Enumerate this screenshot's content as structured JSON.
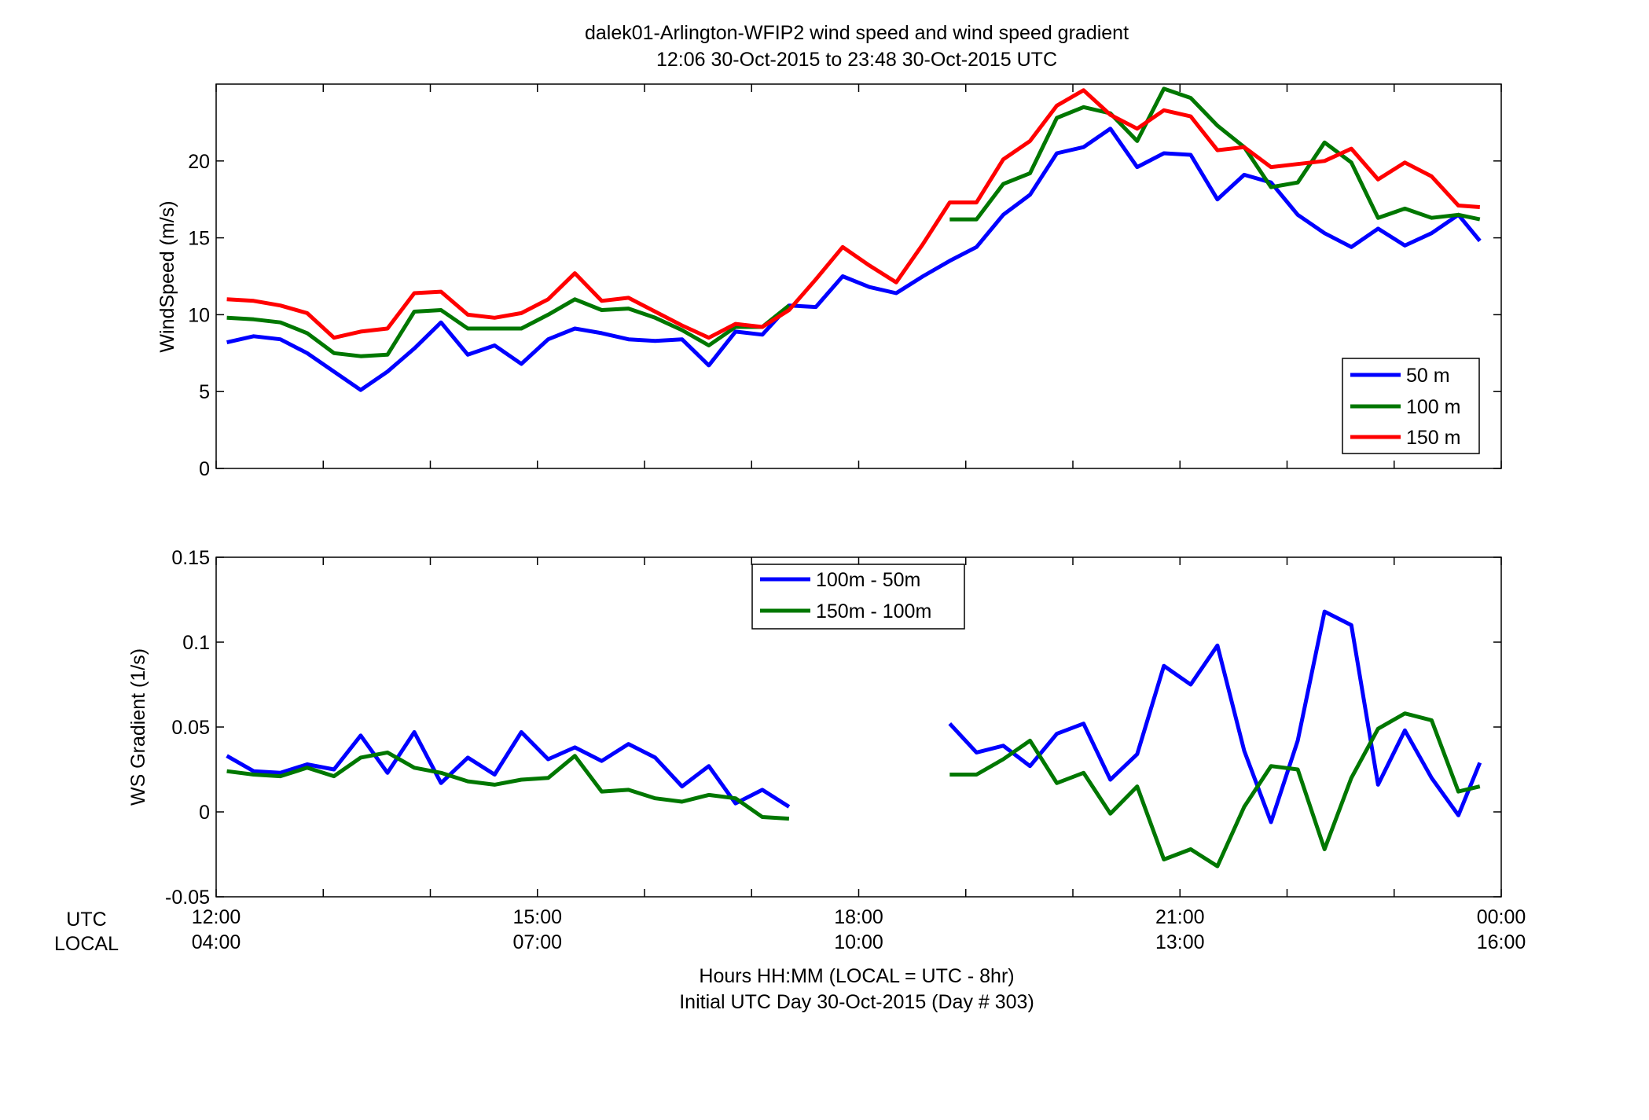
{
  "figure": {
    "title_line1": "dalek01-Arlington-WFIP2  wind speed and wind speed gradient",
    "title_line2": "12:06 30-Oct-2015 to 23:48 30-Oct-2015  UTC",
    "xlabel_line1": "Hours HH:MM  (LOCAL = UTC - 8hr)",
    "xlabel_line2": "Initial UTC Day 30-Oct-2015 (Day # 303)",
    "row_label_utc": "UTC",
    "row_label_local": "LOCAL",
    "xticks_utc": [
      "12:00",
      "15:00",
      "18:00",
      "21:00",
      "00:00"
    ],
    "xticks_local": [
      "04:00",
      "07:00",
      "10:00",
      "13:00",
      "16:00"
    ]
  },
  "chart_data": [
    {
      "type": "line",
      "ylabel": "WindSpeed (m/s)",
      "ylim": [
        0,
        25
      ],
      "yticks": [
        0,
        5,
        10,
        15,
        20
      ],
      "xlim": [
        12,
        24
      ],
      "grid": false,
      "legend_position": "bottom-right",
      "series": [
        {
          "name": "50 m",
          "color": "#0000ff",
          "x": [
            12.1,
            12.35,
            12.6,
            12.85,
            13.1,
            13.35,
            13.6,
            13.85,
            14.1,
            14.35,
            14.6,
            14.85,
            15.1,
            15.35,
            15.6,
            15.85,
            16.1,
            16.35,
            16.6,
            16.85,
            17.1,
            17.35,
            17.6,
            17.85,
            18.1,
            18.35,
            18.6,
            18.85,
            19.1,
            19.35,
            19.6,
            19.85,
            20.1,
            20.35,
            20.6,
            20.85,
            21.1,
            21.35,
            21.6,
            21.85,
            22.1,
            22.35,
            22.6,
            22.85,
            23.1,
            23.35,
            23.6,
            23.8
          ],
          "values": [
            8.2,
            8.6,
            8.4,
            7.5,
            6.3,
            5.1,
            6.3,
            7.8,
            9.5,
            7.4,
            8.0,
            6.8,
            8.4,
            9.1,
            8.8,
            8.4,
            8.3,
            8.4,
            6.7,
            8.9,
            8.7,
            10.6,
            10.5,
            12.5,
            11.8,
            11.4,
            12.5,
            13.5,
            14.4,
            16.5,
            17.8,
            20.5,
            20.9,
            22.1,
            19.6,
            20.5,
            20.4,
            17.5,
            19.1,
            18.6,
            16.5,
            15.3,
            14.4,
            15.6,
            14.5,
            15.3,
            16.5,
            14.8
          ]
        },
        {
          "name": "100 m",
          "color": "#007700",
          "x": [
            12.1,
            12.35,
            12.6,
            12.85,
            13.1,
            13.35,
            13.6,
            13.85,
            14.1,
            14.35,
            14.6,
            14.85,
            15.1,
            15.35,
            15.6,
            15.85,
            16.1,
            16.35,
            16.6,
            16.85,
            17.1,
            17.35,
            null,
            18.85,
            19.1,
            19.35,
            19.6,
            19.85,
            20.1,
            20.35,
            20.6,
            20.85,
            21.1,
            21.35,
            21.6,
            21.85,
            22.1,
            22.35,
            22.6,
            22.85,
            23.1,
            23.35,
            23.6,
            23.8
          ],
          "values": [
            9.8,
            9.7,
            9.5,
            8.8,
            7.5,
            7.3,
            7.4,
            10.2,
            10.3,
            9.1,
            9.1,
            9.1,
            10.0,
            11.0,
            10.3,
            10.4,
            9.8,
            9.0,
            8.0,
            9.2,
            9.2,
            10.6,
            null,
            16.2,
            16.2,
            18.5,
            19.2,
            22.8,
            23.5,
            23.1,
            21.3,
            24.7,
            24.1,
            22.3,
            20.9,
            18.3,
            18.6,
            21.2,
            19.9,
            16.3,
            16.9,
            16.3,
            16.5,
            16.2
          ]
        },
        {
          "name": "150 m",
          "color": "#ff0000",
          "x": [
            12.1,
            12.35,
            12.6,
            12.85,
            13.1,
            13.35,
            13.6,
            13.85,
            14.1,
            14.35,
            14.6,
            14.85,
            15.1,
            15.35,
            15.6,
            15.85,
            16.1,
            16.35,
            16.6,
            16.85,
            17.1,
            17.35,
            17.6,
            17.85,
            18.1,
            18.35,
            18.6,
            18.85,
            19.1,
            19.35,
            19.6,
            19.85,
            20.1,
            20.35,
            20.6,
            20.85,
            21.1,
            21.35,
            21.6,
            21.85,
            22.1,
            22.35,
            22.6,
            22.85,
            23.1,
            23.35,
            23.6,
            23.8
          ],
          "values": [
            11.0,
            10.9,
            10.6,
            10.1,
            8.5,
            8.9,
            9.1,
            11.4,
            11.5,
            10.0,
            9.8,
            10.1,
            11.0,
            12.7,
            10.9,
            11.1,
            10.2,
            9.3,
            8.5,
            9.4,
            9.2,
            10.3,
            12.3,
            14.4,
            13.2,
            12.1,
            14.6,
            17.3,
            17.3,
            20.1,
            21.3,
            23.6,
            24.6,
            23.0,
            22.1,
            23.3,
            22.9,
            20.7,
            20.9,
            19.6,
            19.8,
            20.0,
            20.8,
            18.8,
            19.9,
            19.0,
            17.1,
            17.0
          ]
        }
      ]
    },
    {
      "type": "line",
      "ylabel": "WS Gradient (1/s)",
      "ylim": [
        -0.05,
        0.15
      ],
      "yticks": [
        -0.05,
        0,
        0.05,
        0.1,
        0.15
      ],
      "ytick_labels": [
        "-0.05",
        "0",
        "0.05",
        "0.1",
        "0.15"
      ],
      "xlim": [
        12,
        24
      ],
      "grid": false,
      "legend_position": "top-center",
      "series": [
        {
          "name": "100m - 50m",
          "color": "#0000ff",
          "x": [
            12.1,
            12.35,
            12.6,
            12.85,
            13.1,
            13.35,
            13.6,
            13.85,
            14.1,
            14.35,
            14.6,
            14.85,
            15.1,
            15.35,
            15.6,
            15.85,
            16.1,
            16.35,
            16.6,
            16.85,
            17.1,
            17.35,
            null,
            18.85,
            19.1,
            19.35,
            19.6,
            19.85,
            20.1,
            20.35,
            20.6,
            20.85,
            21.1,
            21.35,
            21.6,
            21.85,
            22.1,
            22.35,
            22.6,
            22.85,
            23.1,
            23.35,
            23.6,
            23.8
          ],
          "values": [
            0.033,
            0.024,
            0.023,
            0.028,
            0.025,
            0.045,
            0.023,
            0.047,
            0.017,
            0.032,
            0.022,
            0.047,
            0.031,
            0.038,
            0.03,
            0.04,
            0.032,
            0.015,
            0.027,
            0.005,
            0.013,
            0.003,
            null,
            0.052,
            0.035,
            0.039,
            0.027,
            0.046,
            0.052,
            0.019,
            0.034,
            0.086,
            0.075,
            0.098,
            0.036,
            -0.006,
            0.042,
            0.118,
            0.11,
            0.016,
            0.048,
            0.02,
            -0.002,
            0.029
          ]
        },
        {
          "name": "150m - 100m",
          "color": "#007700",
          "x": [
            12.1,
            12.35,
            12.6,
            12.85,
            13.1,
            13.35,
            13.6,
            13.85,
            14.1,
            14.35,
            14.6,
            14.85,
            15.1,
            15.35,
            15.6,
            15.85,
            16.1,
            16.35,
            16.6,
            16.85,
            17.1,
            17.35,
            null,
            18.85,
            19.1,
            19.35,
            19.6,
            19.85,
            20.1,
            20.35,
            20.6,
            20.85,
            21.1,
            21.35,
            21.6,
            21.85,
            22.1,
            22.35,
            22.6,
            22.85,
            23.1,
            23.35,
            23.6,
            23.8
          ],
          "values": [
            0.024,
            0.022,
            0.021,
            0.026,
            0.021,
            0.032,
            0.035,
            0.026,
            0.023,
            0.018,
            0.016,
            0.019,
            0.02,
            0.033,
            0.012,
            0.013,
            0.008,
            0.006,
            0.01,
            0.008,
            -0.003,
            -0.004,
            null,
            0.022,
            0.022,
            0.031,
            0.042,
            0.017,
            0.023,
            -0.001,
            0.015,
            -0.028,
            -0.022,
            -0.032,
            0.003,
            0.027,
            0.025,
            -0.022,
            0.02,
            0.049,
            0.058,
            0.054,
            0.012,
            0.015
          ]
        }
      ]
    }
  ]
}
